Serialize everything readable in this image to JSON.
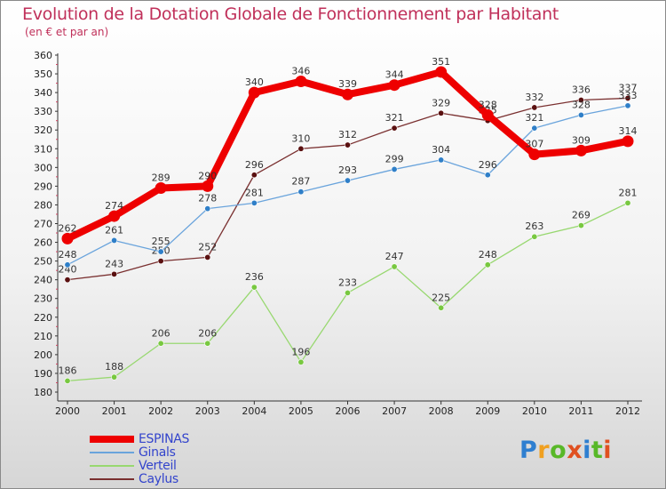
{
  "title": "Evolution de la Dotation Globale de Fonctionnement par Habitant",
  "subtitle": "(en € et par an)",
  "logo": {
    "text": "Proxiti",
    "letters": [
      "P",
      "r",
      "o",
      "x",
      "i",
      "t",
      "i"
    ],
    "colors": [
      "#2f7fd0",
      "#f0a020",
      "#58b828",
      "#e05020",
      "#2f7fd0",
      "#58b828",
      "#e05020"
    ]
  },
  "chart_data": {
    "type": "line",
    "title": "Evolution de la Dotation Globale de Fonctionnement par Habitant",
    "subtitle": "(en € et par an)",
    "xlabel": "",
    "ylabel": "",
    "x": [
      "2000",
      "2001",
      "2002",
      "2003",
      "2004",
      "2005",
      "2006",
      "2007",
      "2008",
      "2009",
      "2010",
      "2011",
      "2012"
    ],
    "ylim": [
      180,
      360
    ],
    "yticks": [
      180,
      190,
      200,
      210,
      220,
      230,
      240,
      250,
      260,
      270,
      280,
      290,
      300,
      310,
      320,
      330,
      340,
      350,
      360
    ],
    "grid": false,
    "legend_position": "bottom-left",
    "series": [
      {
        "name": "Verteil",
        "color": "#98d870",
        "marker": "#78c840",
        "width": 1.3,
        "values": [
          186,
          188,
          206,
          206,
          236,
          196,
          233,
          247,
          225,
          248,
          263,
          269,
          281
        ]
      },
      {
        "name": "Caylus",
        "color": "#7a3030",
        "marker": "#5a1010",
        "width": 1.3,
        "values": [
          240,
          243,
          250,
          252,
          296,
          310,
          312,
          321,
          329,
          325,
          332,
          336,
          337
        ]
      },
      {
        "name": "Ginals",
        "color": "#6aa4dc",
        "marker": "#2f7fc8",
        "width": 1.3,
        "values": [
          248,
          261,
          255,
          278,
          281,
          287,
          293,
          299,
          304,
          296,
          321,
          328,
          333
        ]
      },
      {
        "name": "ESPINAS",
        "color": "#ee0000",
        "marker": "#ee0000",
        "width": 8,
        "values": [
          262,
          274,
          289,
          290,
          340,
          346,
          339,
          344,
          351,
          328,
          307,
          309,
          314
        ]
      }
    ],
    "legend": [
      "ESPINAS",
      "Ginals",
      "Verteil",
      "Caylus"
    ]
  }
}
